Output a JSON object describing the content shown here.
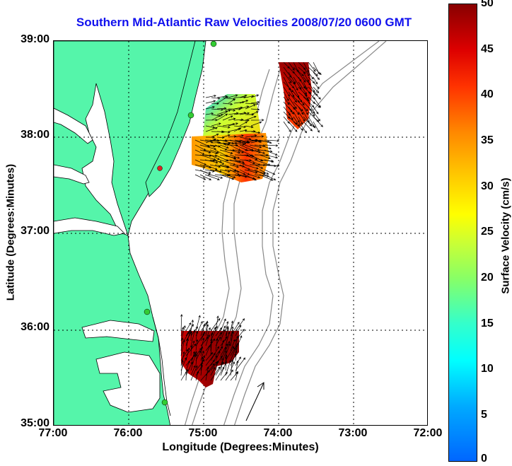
{
  "title": "Southern Mid-Atlantic Raw Velocities 2008/07/20 0600 GMT",
  "axes": {
    "xlabel": "Longitude (Degrees:Minutes)",
    "ylabel": "Latitude (Degrees:Minutes)",
    "x_ticks": [
      "77:00",
      "76:00",
      "75:00",
      "74:00",
      "73:00",
      "72:00"
    ],
    "y_ticks": [
      "39:00",
      "38:00",
      "37:00",
      "36:00",
      "35:00"
    ]
  },
  "colorbar": {
    "label": "Surface Velocity (cm/s)",
    "ticks": [
      "50",
      "45",
      "40",
      "35",
      "30",
      "25",
      "20",
      "15",
      "10",
      "5",
      "0"
    ]
  },
  "colors": {
    "land": "#55f5aa",
    "title": "#1010ee",
    "station": "#33cc33",
    "station_alert": "#dd2222"
  }
}
